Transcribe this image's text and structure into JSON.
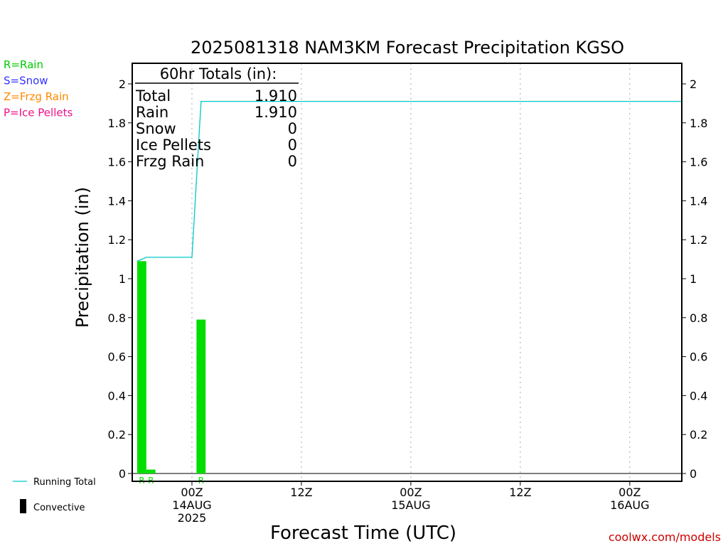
{
  "chart_data": {
    "type": "bar",
    "title": "2025081318 NAM3KM Forecast Precipitation KGSO",
    "xlabel": "Forecast Time (UTC)",
    "ylabel": "Precipitation (in)",
    "ylim": [
      0,
      2.1
    ],
    "y_ticks": [
      0,
      0.2,
      0.4,
      0.6,
      0.8,
      1,
      1.2,
      1.4,
      1.6,
      1.8,
      2
    ],
    "x_range_hours": [
      -1,
      49
    ],
    "x_ticks": [
      {
        "hours": 6,
        "lines": [
          "00Z",
          "14AUG",
          "2025"
        ]
      },
      {
        "hours": 18,
        "lines": [
          "12Z"
        ]
      },
      {
        "hours": 30,
        "lines": [
          "00Z",
          "15AUG"
        ]
      },
      {
        "hours": 42,
        "lines": [
          "12Z"
        ]
      },
      {
        "hours": 54,
        "lines": [
          "00Z",
          "16AUG"
        ]
      }
    ],
    "grid": "vertical dotted",
    "bars": [
      {
        "start_h": 0,
        "end_h": 1,
        "value": 1.09,
        "type": "R"
      },
      {
        "start_h": 1,
        "end_h": 2,
        "value": 0.02,
        "type": "R"
      },
      {
        "start_h": 6.5,
        "end_h": 7.5,
        "value": 0.79,
        "type": "R"
      }
    ],
    "running_total": {
      "name": "Running Total",
      "x_hours": [
        0,
        1,
        2,
        6,
        7,
        60
      ],
      "values": [
        1.09,
        1.11,
        1.11,
        1.11,
        1.91,
        1.91
      ]
    },
    "totals_box": {
      "header": "60hr Totals (in):",
      "rows": [
        {
          "label": "Total",
          "value": "1.910"
        },
        {
          "label": "Rain",
          "value": "1.910"
        },
        {
          "label": "Snow",
          "value": "0"
        },
        {
          "label": "Ice Pellets",
          "value": "0"
        },
        {
          "label": "Frzg Rain",
          "value": "0"
        }
      ]
    },
    "type_legend": [
      {
        "text": "R=Rain",
        "color": "#00cc00"
      },
      {
        "text": "S=Snow",
        "color": "#3333ff"
      },
      {
        "text": "Z=Frzg Rain",
        "color": "#ff8800"
      },
      {
        "text": "P=Ice Pellets",
        "color": "#ee1188"
      }
    ],
    "line_legend": [
      {
        "text": "Running Total",
        "kind": "line",
        "color": "#00c8c8"
      },
      {
        "text": "Convective",
        "kind": "box",
        "color": "#000000"
      }
    ],
    "credit": "coolwx.com/models"
  },
  "colors": {
    "rain": "#00dd00",
    "running_total": "#00c8c8",
    "credit": "#cc0000",
    "axis": "#000000",
    "grid": "#aaaaaa"
  }
}
